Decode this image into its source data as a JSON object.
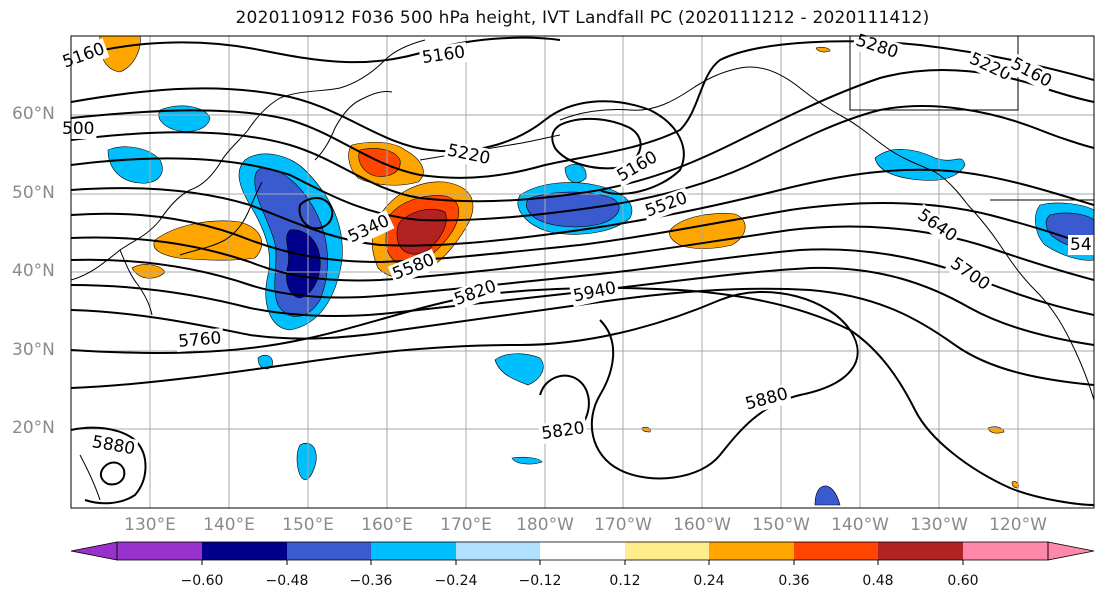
{
  "title": "2020110912 F036 500 hPa height, IVT Landfall PC (2020111212 - 2020111412)",
  "lat_labels": [
    "60°N",
    "50°N",
    "40°N",
    "30°N",
    "20°N"
  ],
  "lon_labels": [
    "130°E",
    "140°E",
    "150°E",
    "160°E",
    "170°E",
    "180°W",
    "170°W",
    "160°W",
    "150°W",
    "140°W",
    "130°W",
    "120°W"
  ],
  "contour_labels": [
    "5160",
    "5160",
    "5280",
    "5220",
    "5160",
    "500",
    "5220",
    "5160",
    "5520",
    "5340",
    "5580",
    "5820",
    "5940",
    "5640",
    "5700",
    "5760",
    "5880",
    "5820",
    "5880",
    "54"
  ],
  "colorbar": {
    "tick_labels": [
      "−0.60",
      "−0.48",
      "−0.36",
      "−0.24",
      "−0.12",
      "0.12",
      "0.24",
      "0.36",
      "0.48",
      "0.60"
    ],
    "colors": [
      "#9932cc",
      "#00008b",
      "#3a5bd0",
      "#00bfff",
      "#b0e2ff",
      "#ffffff",
      "#ffec8b",
      "#ffa500",
      "#ff4500",
      "#b22222",
      "#ff88aa"
    ]
  }
}
